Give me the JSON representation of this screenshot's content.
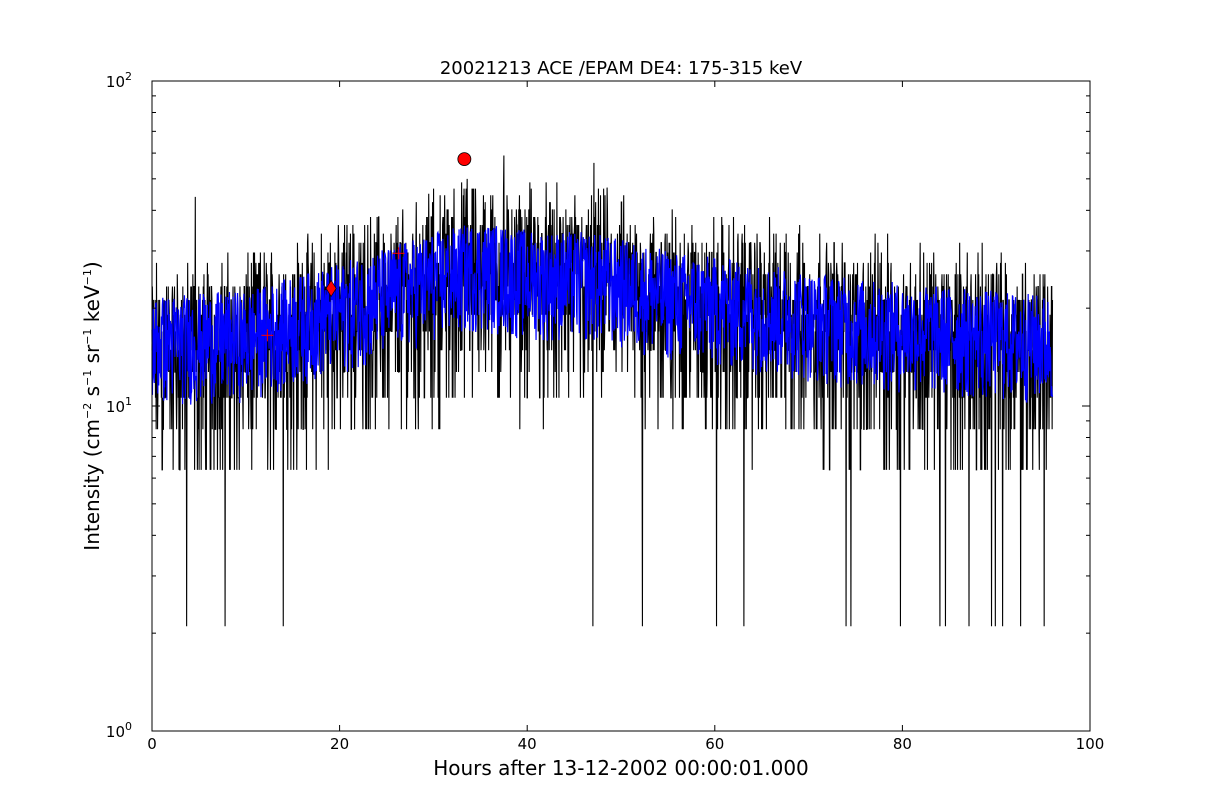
{
  "chart_data": {
    "type": "line",
    "title": "20021213 ACE /EPAM DE4: 175-315 keV",
    "xlabel": "Hours after 13-12-2002 00:00:01.000",
    "ylabel": {
      "prefix": "Intensity (cm",
      "exp1": "−2",
      "part2": " s",
      "exp2": "−1",
      "part3": " sr",
      "exp3": "−1",
      "part4": " keV",
      "exp4": "−1",
      "suffix": ")"
    },
    "xlim": [
      0,
      100
    ],
    "ylim": [
      1,
      100
    ],
    "yscale": "log",
    "grid": false,
    "xticks": [
      {
        "value": 0,
        "label": "0"
      },
      {
        "value": 20,
        "label": "20"
      },
      {
        "value": 40,
        "label": "40"
      },
      {
        "value": 60,
        "label": "60"
      },
      {
        "value": 80,
        "label": "80"
      },
      {
        "value": 100,
        "label": "100"
      }
    ],
    "yticks": [
      {
        "value": 1,
        "base": "10",
        "exp": "0"
      },
      {
        "value": 10,
        "base": "10",
        "exp": "1"
      },
      {
        "value": 100,
        "base": "10",
        "exp": "2"
      }
    ],
    "raw_series": {
      "color": "#000000",
      "x_range": [
        0,
        96
      ],
      "noise_level_steps": 2.12,
      "envelope": [
        {
          "x": 0,
          "y": 15
        },
        {
          "x": 10,
          "y": 16
        },
        {
          "x": 20,
          "y": 20
        },
        {
          "x": 30,
          "y": 25
        },
        {
          "x": 35,
          "y": 27
        },
        {
          "x": 40,
          "y": 26
        },
        {
          "x": 47,
          "y": 25
        },
        {
          "x": 55,
          "y": 22
        },
        {
          "x": 65,
          "y": 20
        },
        {
          "x": 75,
          "y": 18
        },
        {
          "x": 85,
          "y": 17
        },
        {
          "x": 96,
          "y": 16
        }
      ],
      "spikes_down": [
        {
          "x": 3.7,
          "y": 2.1
        },
        {
          "x": 4.6,
          "y": 2.1
        },
        {
          "x": 7.8,
          "y": 2.1
        },
        {
          "x": 14.0,
          "y": 2.1
        },
        {
          "x": 47.0,
          "y": 2.1
        },
        {
          "x": 52.3,
          "y": 2.1
        },
        {
          "x": 60.2,
          "y": 2.1
        },
        {
          "x": 63.1,
          "y": 2.1
        },
        {
          "x": 74.0,
          "y": 2.1
        },
        {
          "x": 74.5,
          "y": 2.1
        },
        {
          "x": 79.8,
          "y": 2.1
        },
        {
          "x": 84.0,
          "y": 2.1
        },
        {
          "x": 84.6,
          "y": 2.1
        },
        {
          "x": 87.1,
          "y": 2.1
        },
        {
          "x": 89.5,
          "y": 2.1
        },
        {
          "x": 89.9,
          "y": 2.1
        },
        {
          "x": 90.7,
          "y": 2.1
        },
        {
          "x": 92.6,
          "y": 2.1
        },
        {
          "x": 95.1,
          "y": 2.1
        }
      ],
      "spikes_up": [
        {
          "x": 4.6,
          "y": 44
        },
        {
          "x": 33.6,
          "y": 50
        },
        {
          "x": 37.5,
          "y": 59
        },
        {
          "x": 47.1,
          "y": 56
        },
        {
          "x": 48.5,
          "y": 47
        },
        {
          "x": 29.5,
          "y": 45
        }
      ]
    },
    "smoothed_series": {
      "color": "#0000ff",
      "envelope": [
        {
          "x": 0,
          "y": 16
        },
        {
          "x": 10,
          "y": 16.5
        },
        {
          "x": 20,
          "y": 20
        },
        {
          "x": 30,
          "y": 25
        },
        {
          "x": 35,
          "y": 27
        },
        {
          "x": 40,
          "y": 25.5
        },
        {
          "x": 47,
          "y": 25
        },
        {
          "x": 55,
          "y": 22
        },
        {
          "x": 65,
          "y": 20
        },
        {
          "x": 75,
          "y": 18
        },
        {
          "x": 85,
          "y": 17
        },
        {
          "x": 96,
          "y": 16
        }
      ]
    },
    "markers": [
      {
        "shape": "plus",
        "x": 12.3,
        "y": 16.5,
        "color": "#ff0000"
      },
      {
        "shape": "diamond",
        "x": 19.1,
        "y": 23,
        "color": "#ff0000"
      },
      {
        "shape": "plus",
        "x": 26.3,
        "y": 29.5,
        "color": "#ff0000"
      },
      {
        "shape": "circle",
        "x": 33.3,
        "y": 57.5,
        "color": "#ff0000"
      }
    ]
  }
}
